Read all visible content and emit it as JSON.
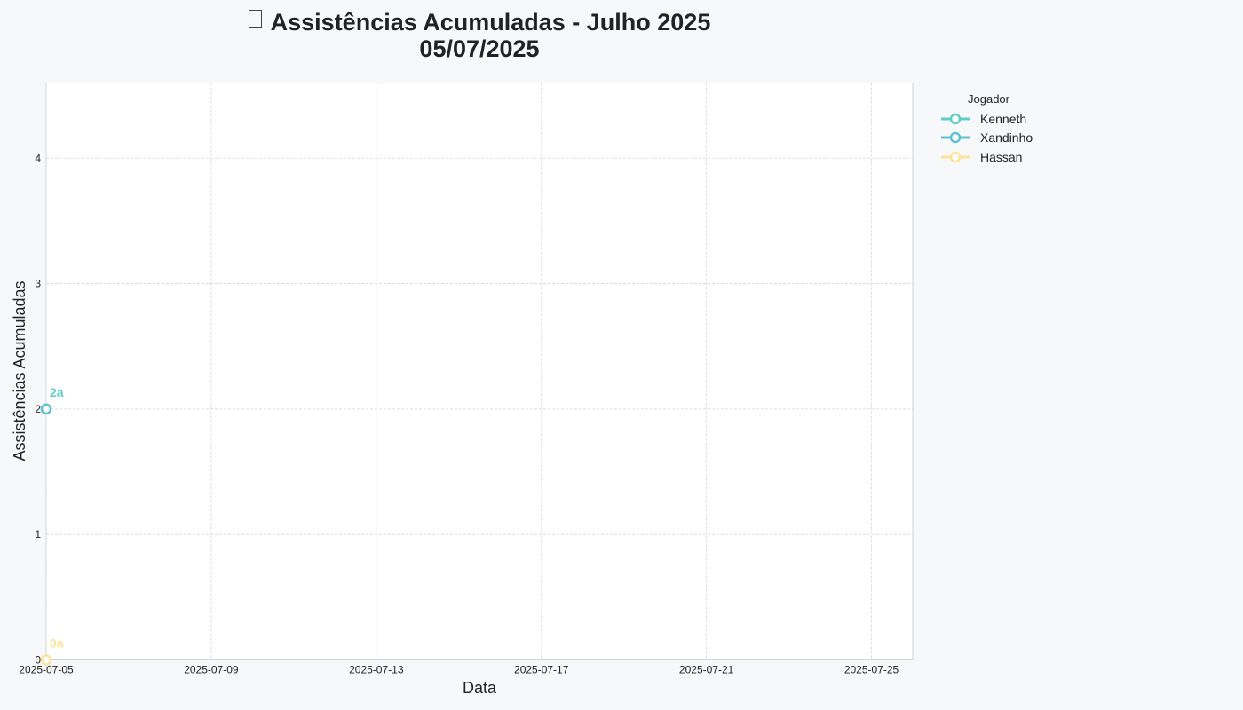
{
  "title": {
    "line1": "Assistências Acumuladas - Julho 2025",
    "line2": "05/07/2025"
  },
  "legend": {
    "title": "Jogador"
  },
  "chart_data": {
    "type": "line",
    "xlabel": "Data",
    "ylabel": "Assistências Acumuladas",
    "x_ticks": [
      "2025-07-05",
      "2025-07-09",
      "2025-07-13",
      "2025-07-17",
      "2025-07-21",
      "2025-07-25"
    ],
    "y_ticks": [
      0,
      1,
      2,
      3,
      4
    ],
    "xlim": [
      "2025-07-05",
      "2025-07-26"
    ],
    "ylim": [
      0,
      4.6
    ],
    "grid": true,
    "legend_position": "outside-top-right",
    "series": [
      {
        "name": "Kenneth",
        "color": "#5ecec6",
        "points": [
          {
            "x": "2025-07-05",
            "y": 2
          }
        ],
        "point_label": "2a"
      },
      {
        "name": "Xandinho",
        "color": "#5fc0d4",
        "points": [
          {
            "x": "2025-07-05",
            "y": 2
          }
        ],
        "point_label": "2a"
      },
      {
        "name": "Hassan",
        "color": "#fbe49a",
        "points": [
          {
            "x": "2025-07-05",
            "y": 0
          }
        ],
        "point_label": "0a"
      }
    ]
  }
}
